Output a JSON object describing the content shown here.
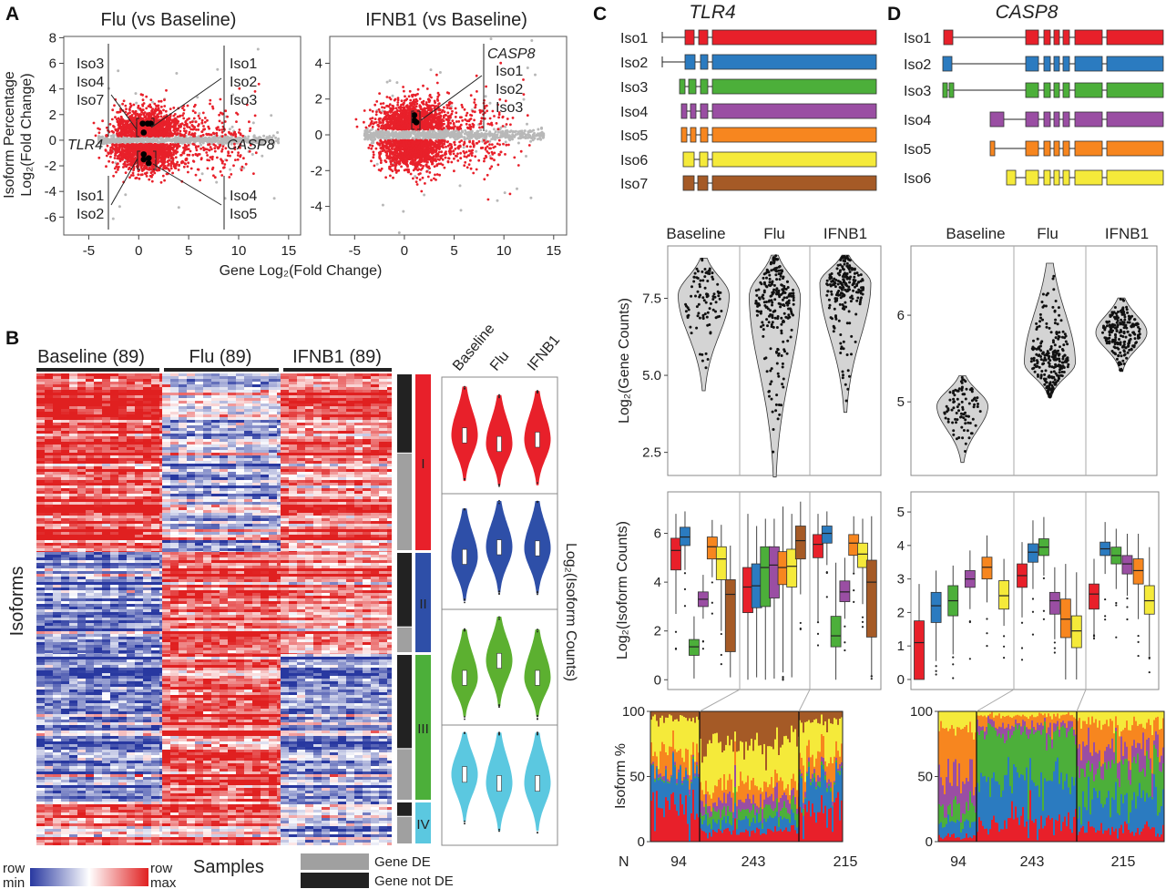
{
  "panel_labels": {
    "a": "A",
    "b": "B",
    "c": "C",
    "d": "D"
  },
  "colors": {
    "significant": "#e8202a",
    "not_significant": "#b8b8b8",
    "highlight": "#000000",
    "heat_min": "#2838a0",
    "heat_mid": "#ffffff",
    "heat_max": "#e02020",
    "gene_de": "#a0a0a0",
    "gene_not_de": "#222222",
    "iso": [
      "#e8202a",
      "#2b7bc0",
      "#4caf3a",
      "#9a4ea3",
      "#f7861f",
      "#f5ea3a",
      "#a55a26"
    ]
  },
  "chart_data": [
    {
      "type": "scatter",
      "title": "Flu (vs Baseline)",
      "xlabel": "Gene Log₂(Fold Change)",
      "ylabel": [
        "Isoform Percentage",
        "Log₂(Fold Change)"
      ],
      "xlim": [
        -7.5,
        16.2
      ],
      "ylim": [
        -7.4,
        8.1
      ],
      "xticks": [
        "-5",
        "0",
        "5",
        "10",
        "15"
      ],
      "xtick_values": [
        -5,
        0,
        5,
        10,
        15
      ],
      "yticks": [
        "-6",
        "-4",
        "-2",
        "0",
        "2",
        "4",
        "6",
        "8"
      ],
      "ytick_values": [
        -6,
        -4,
        -2,
        0,
        2,
        4,
        6,
        8
      ],
      "highlighted": [
        [
          0.4,
          1.3
        ],
        [
          0.9,
          1.3
        ],
        [
          1.2,
          1.3
        ],
        [
          0.5,
          0.6
        ],
        [
          0.5,
          -1.1
        ],
        [
          0.5,
          -1.5
        ],
        [
          1.0,
          -1.4
        ],
        [
          1.0,
          -1.8
        ]
      ],
      "genes": {
        "left": "TLR4",
        "right": "CASP8"
      },
      "annotations": {
        "upper_left": [
          "Iso3",
          "Iso4",
          "Iso7"
        ],
        "upper_right": [
          "Iso1",
          "Iso2",
          "Iso3"
        ],
        "lower_left": [
          "Iso1",
          "Iso2"
        ],
        "lower_right": [
          "Iso4",
          "Iso5"
        ]
      }
    },
    {
      "type": "scatter",
      "title": "IFNB1 (vs Baseline)",
      "xlim": [
        -7.5,
        16.3
      ],
      "ylim": [
        -5.6,
        5.5
      ],
      "xticks": [
        "-5",
        "0",
        "5",
        "10",
        "15"
      ],
      "xtick_values": [
        -5,
        0,
        5,
        10,
        15
      ],
      "yticks": [
        "-4",
        "-2",
        "0",
        "2",
        "4"
      ],
      "ytick_values": [
        -4,
        -2,
        0,
        2,
        4
      ],
      "highlighted": [
        [
          1.0,
          1.1
        ],
        [
          1.0,
          0.8
        ],
        [
          1.2,
          0.7
        ]
      ],
      "gene": "CASP8",
      "annotations": [
        "Iso1",
        "Iso2",
        "Iso3"
      ]
    },
    {
      "type": "heatmap",
      "columns": [
        "Baseline (89)",
        "Flu (89)",
        "IFNB1 (89)"
      ],
      "ylabel": "Isoforms",
      "xlabel": "Samples",
      "clusters": [
        {
          "label": "I",
          "color": "#e8202a",
          "mean_by_condition": [
            0.75,
            -0.35,
            0.5
          ],
          "de_fraction": 0.45
        },
        {
          "label": "II",
          "color": "#2e4fa8",
          "mean_by_condition": [
            -0.6,
            0.7,
            0.45
          ],
          "de_fraction": 0.75
        },
        {
          "label": "III",
          "color": "#4caf3a",
          "mean_by_condition": [
            -0.55,
            0.75,
            -0.5
          ],
          "de_fraction": 0.65
        },
        {
          "label": "IV",
          "color": "#5bc8e0",
          "mean_by_condition": [
            0.45,
            0.55,
            -0.3
          ],
          "de_fraction": 0.35
        }
      ],
      "colorbar": {
        "min": [
          "row",
          "min"
        ],
        "max": [
          "row",
          "max"
        ]
      },
      "legend": {
        "de": "Gene DE",
        "not_de": "Gene not DE"
      }
    },
    {
      "type": "violin",
      "groups": [
        "Baseline",
        "Flu",
        "IFNB1"
      ],
      "ylabel": "Log₂(Isoform Counts)",
      "rows": [
        {
          "cluster": "I",
          "color": "#e8202a",
          "modes": [
            0.5,
            0.42,
            0.46
          ]
        },
        {
          "cluster": "II",
          "color": "#2e4fa8",
          "modes": [
            0.45,
            0.54,
            0.53
          ]
        },
        {
          "cluster": "III",
          "color": "#5cb030",
          "modes": [
            0.4,
            0.56,
            0.4
          ]
        },
        {
          "cluster": "IV",
          "color": "#5bc8e0",
          "modes": [
            0.6,
            0.52,
            0.52
          ]
        }
      ]
    },
    {
      "type": "gene_structure",
      "title": "TLR4",
      "isoforms": [
        "Iso1",
        "Iso2",
        "Iso3",
        "Iso4",
        "Iso5",
        "Iso6",
        "Iso7"
      ]
    },
    {
      "type": "violin",
      "gene": "TLR4",
      "groups": [
        "Baseline",
        "Flu",
        "IFNB1"
      ],
      "ylabel": "Log₂(Gene Counts)",
      "ylim": [
        1.75,
        9.2
      ],
      "yticks": [
        "2.5",
        "5.0",
        "7.5"
      ],
      "ytick_values": [
        2.5,
        5.0,
        7.5
      ],
      "distributions": [
        {
          "mode": 7.6,
          "lo": 4.5,
          "hi": 8.8,
          "n": 94
        },
        {
          "mode": 7.6,
          "lo": 1.7,
          "hi": 8.9,
          "n": 243
        },
        {
          "mode": 8.0,
          "lo": 3.8,
          "hi": 8.9,
          "n": 215
        }
      ]
    },
    {
      "type": "box",
      "gene": "TLR4",
      "ylabel": "Log₂(Isoform Counts)",
      "ylim": [
        -0.4,
        7.7
      ],
      "yticks": [
        "0",
        "2",
        "4",
        "6"
      ],
      "ytick_values": [
        0,
        2,
        4,
        6
      ],
      "isoforms": [
        "Iso1",
        "Iso2",
        "Iso3",
        "Iso4",
        "Iso5",
        "Iso6",
        "Iso7"
      ],
      "groups": [
        {
          "name": "Baseline",
          "boxes": [
            [
              2.7,
              4.5,
              5.3,
              5.8,
              6.8
            ],
            [
              4.5,
              5.5,
              5.85,
              6.25,
              6.9
            ],
            [
              0.05,
              1.0,
              1.35,
              1.65,
              2.6
            ],
            [
              2.5,
              3.0,
              3.3,
              3.6,
              4.3
            ],
            [
              4.2,
              4.95,
              5.45,
              5.85,
              6.55
            ],
            [
              2.0,
              4.1,
              4.95,
              5.45,
              6.35
            ],
            [
              0.1,
              1.15,
              3.5,
              4.1,
              5.5
            ]
          ]
        },
        {
          "name": "Flu",
          "boxes": [
            [
              0,
              2.75,
              3.8,
              4.6,
              6.8
            ],
            [
              0.1,
              2.95,
              3.85,
              4.75,
              6.3
            ],
            [
              0,
              3.0,
              4.6,
              5.45,
              6.6
            ],
            [
              0.05,
              3.35,
              4.7,
              5.45,
              6.6
            ],
            [
              0.3,
              3.9,
              4.6,
              5.25,
              7.1
            ],
            [
              0.1,
              3.8,
              4.65,
              5.35,
              6.8
            ],
            [
              3.5,
              4.95,
              5.7,
              6.3,
              7.3
            ]
          ]
        },
        {
          "name": "IFNB1",
          "boxes": [
            [
              2.4,
              5.0,
              5.55,
              5.95,
              6.8
            ],
            [
              4.7,
              5.6,
              6.0,
              6.3,
              6.9
            ],
            [
              0,
              1.35,
              1.8,
              2.6,
              4.8
            ],
            [
              2.5,
              3.2,
              3.6,
              4.05,
              5.0
            ],
            [
              4.4,
              5.1,
              5.6,
              5.95,
              6.7
            ],
            [
              3.1,
              4.6,
              5.15,
              5.6,
              6.6
            ],
            [
              0.15,
              1.75,
              4.0,
              4.9,
              6.7
            ]
          ]
        }
      ]
    },
    {
      "type": "stacked_bar",
      "gene": "TLR4",
      "ylabel": "Isoform %",
      "ylim": [
        0,
        100
      ],
      "yticks": [
        "0",
        "50",
        "100"
      ],
      "ytick_values": [
        0,
        50,
        100
      ],
      "n_label": "N",
      "n": [
        "94",
        "243",
        "215"
      ],
      "n_values": [
        94,
        243,
        215
      ],
      "mean_shares": [
        [
          28,
          25,
          1,
          2,
          15,
          24,
          5
        ],
        [
          8,
          8,
          8,
          8,
          12,
          30,
          26
        ],
        [
          25,
          23,
          2,
          3,
          15,
          25,
          7
        ]
      ]
    },
    {
      "type": "gene_structure",
      "title": "CASP8",
      "isoforms": [
        "Iso1",
        "Iso2",
        "Iso3",
        "Iso4",
        "Iso5",
        "Iso6"
      ]
    },
    {
      "type": "violin",
      "gene": "CASP8",
      "groups": [
        "Baseline",
        "Flu",
        "IFNB1"
      ],
      "ylim": [
        4.15,
        6.8
      ],
      "yticks": [
        "5",
        "6"
      ],
      "ytick_values": [
        5,
        6
      ],
      "distributions": [
        {
          "mode": 4.95,
          "lo": 4.3,
          "hi": 5.3,
          "n": 94
        },
        {
          "mode": 5.45,
          "lo": 5.05,
          "hi": 6.6,
          "n": 243
        },
        {
          "mode": 5.8,
          "lo": 5.35,
          "hi": 6.2,
          "n": 215
        }
      ]
    },
    {
      "type": "box",
      "gene": "CASP8",
      "ylim": [
        -0.3,
        5.6
      ],
      "yticks": [
        "0",
        "1",
        "2",
        "3",
        "4",
        "5"
      ],
      "ytick_values": [
        0,
        1,
        2,
        3,
        4,
        5
      ],
      "isoforms": [
        "Iso1",
        "Iso2",
        "Iso3",
        "Iso4",
        "Iso5",
        "Iso6"
      ],
      "groups": [
        {
          "name": "Baseline",
          "boxes": [
            [
              0,
              0,
              1.1,
              1.75,
              2.85
            ],
            [
              0.55,
              1.7,
              2.2,
              2.6,
              3.25
            ],
            [
              0.75,
              1.9,
              2.35,
              2.8,
              3.4
            ],
            [
              2.1,
              2.75,
              3.0,
              3.25,
              3.85
            ],
            [
              2.3,
              3.0,
              3.35,
              3.65,
              4.3
            ],
            [
              1.6,
              2.1,
              2.5,
              2.95,
              3.6
            ]
          ]
        },
        {
          "name": "Flu",
          "boxes": [
            [
              1.85,
              2.75,
              3.1,
              3.45,
              4.1
            ],
            [
              2.7,
              3.5,
              3.8,
              4.05,
              4.75
            ],
            [
              3.1,
              3.7,
              3.95,
              4.2,
              4.85
            ],
            [
              1.2,
              1.95,
              2.35,
              2.6,
              3.35
            ],
            [
              0,
              1.25,
              1.8,
              2.4,
              3.45
            ],
            [
              0,
              0.95,
              1.45,
              1.9,
              3.2
            ]
          ]
        },
        {
          "name": "IFNB1",
          "boxes": [
            [
              1.35,
              2.1,
              2.55,
              2.85,
              3.6
            ],
            [
              3.15,
              3.7,
              3.9,
              4.1,
              4.7
            ],
            [
              2.7,
              3.45,
              3.7,
              3.95,
              4.5
            ],
            [
              2.5,
              3.15,
              3.45,
              3.7,
              4.35
            ],
            [
              1.8,
              2.85,
              3.25,
              3.6,
              4.35
            ],
            [
              0.7,
              1.95,
              2.35,
              2.8,
              3.95
            ]
          ]
        }
      ]
    },
    {
      "type": "stacked_bar",
      "gene": "CASP8",
      "ylim": [
        0,
        100
      ],
      "yticks": [
        "0",
        "50",
        "100"
      ],
      "ytick_values": [
        0,
        50,
        100
      ],
      "n": [
        "94",
        "243",
        "215"
      ],
      "n_values": [
        94,
        243,
        215
      ],
      "mean_shares": [
        [
          4,
          10,
          12,
          22,
          40,
          12
        ],
        [
          16,
          32,
          36,
          6,
          7,
          3
        ],
        [
          9,
          22,
          26,
          14,
          20,
          9
        ]
      ]
    }
  ]
}
